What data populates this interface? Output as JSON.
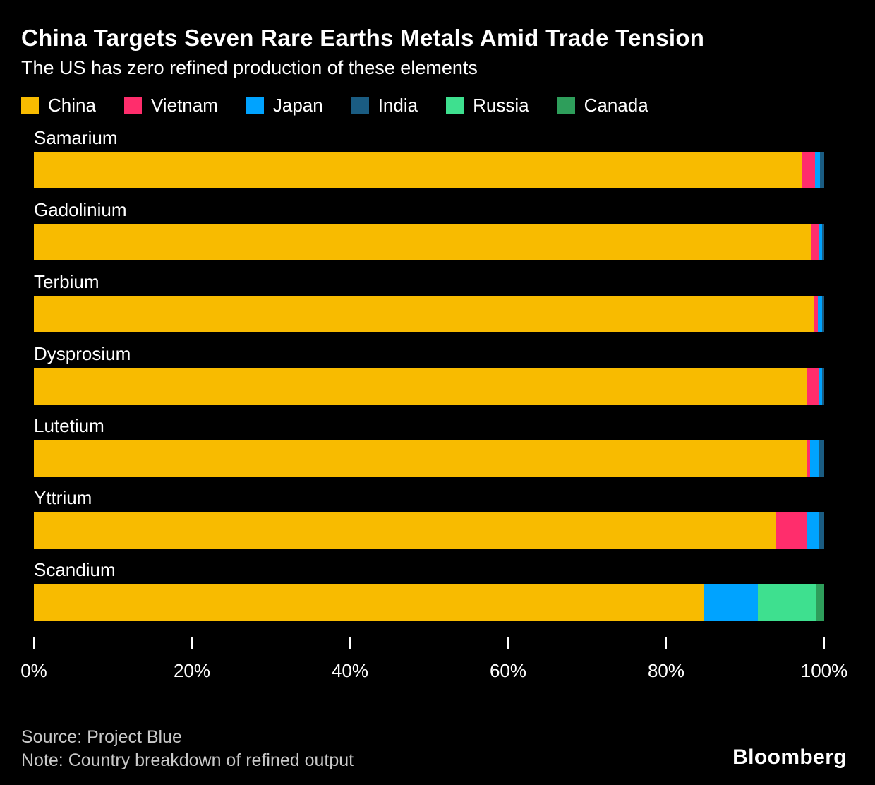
{
  "header": {
    "title": "China Targets Seven Rare Earths Metals Amid Trade Tension",
    "subtitle": "The US has zero refined production of these elements"
  },
  "legend": [
    {
      "label": "China",
      "color": "#F8BB00"
    },
    {
      "label": "Vietnam",
      "color": "#FF2D6C"
    },
    {
      "label": "Japan",
      "color": "#00A3FF"
    },
    {
      "label": "India",
      "color": "#1A5C82"
    },
    {
      "label": "Russia",
      "color": "#3EE08F"
    },
    {
      "label": "Canada",
      "color": "#2E9E5B"
    }
  ],
  "chart_data": {
    "type": "bar",
    "orientation": "horizontal",
    "stacked": true,
    "title": "China Targets Seven Rare Earths Metals Amid Trade Tension",
    "subtitle": "The US has zero refined production of these elements",
    "categories": [
      "Samarium",
      "Gadolinium",
      "Terbium",
      "Dysprosium",
      "Lutetium",
      "Yttrium",
      "Scandium"
    ],
    "series": [
      {
        "name": "China",
        "color": "#F8BB00",
        "values": [
          97.2,
          98.3,
          98.7,
          97.8,
          97.8,
          93.9,
          84.7
        ]
      },
      {
        "name": "Vietnam",
        "color": "#FF2D6C",
        "values": [
          1.6,
          1.0,
          0.5,
          1.5,
          0.4,
          4.0,
          0
        ]
      },
      {
        "name": "Japan",
        "color": "#00A3FF",
        "values": [
          0.7,
          0.4,
          0.5,
          0.4,
          1.2,
          1.4,
          6.9
        ]
      },
      {
        "name": "India",
        "color": "#1A5C82",
        "values": [
          0.5,
          0.3,
          0.3,
          0.3,
          0.6,
          0.7,
          0
        ]
      },
      {
        "name": "Russia",
        "color": "#3EE08F",
        "values": [
          0,
          0,
          0,
          0,
          0,
          0,
          7.3
        ]
      },
      {
        "name": "Canada",
        "color": "#2E9E5B",
        "values": [
          0,
          0,
          0,
          0,
          0,
          0,
          1.1
        ]
      }
    ],
    "x_axis": {
      "min": 0,
      "max": 100,
      "tick_labels": [
        "0%",
        "20%",
        "40%",
        "60%",
        "80%",
        "100%"
      ],
      "tick_values": [
        0,
        20,
        40,
        60,
        80,
        100
      ]
    },
    "legend_position": "top",
    "grid": false
  },
  "footer": {
    "source": "Source: Project Blue",
    "note": "Note: Country breakdown of refined output",
    "brand": "Bloomberg"
  }
}
